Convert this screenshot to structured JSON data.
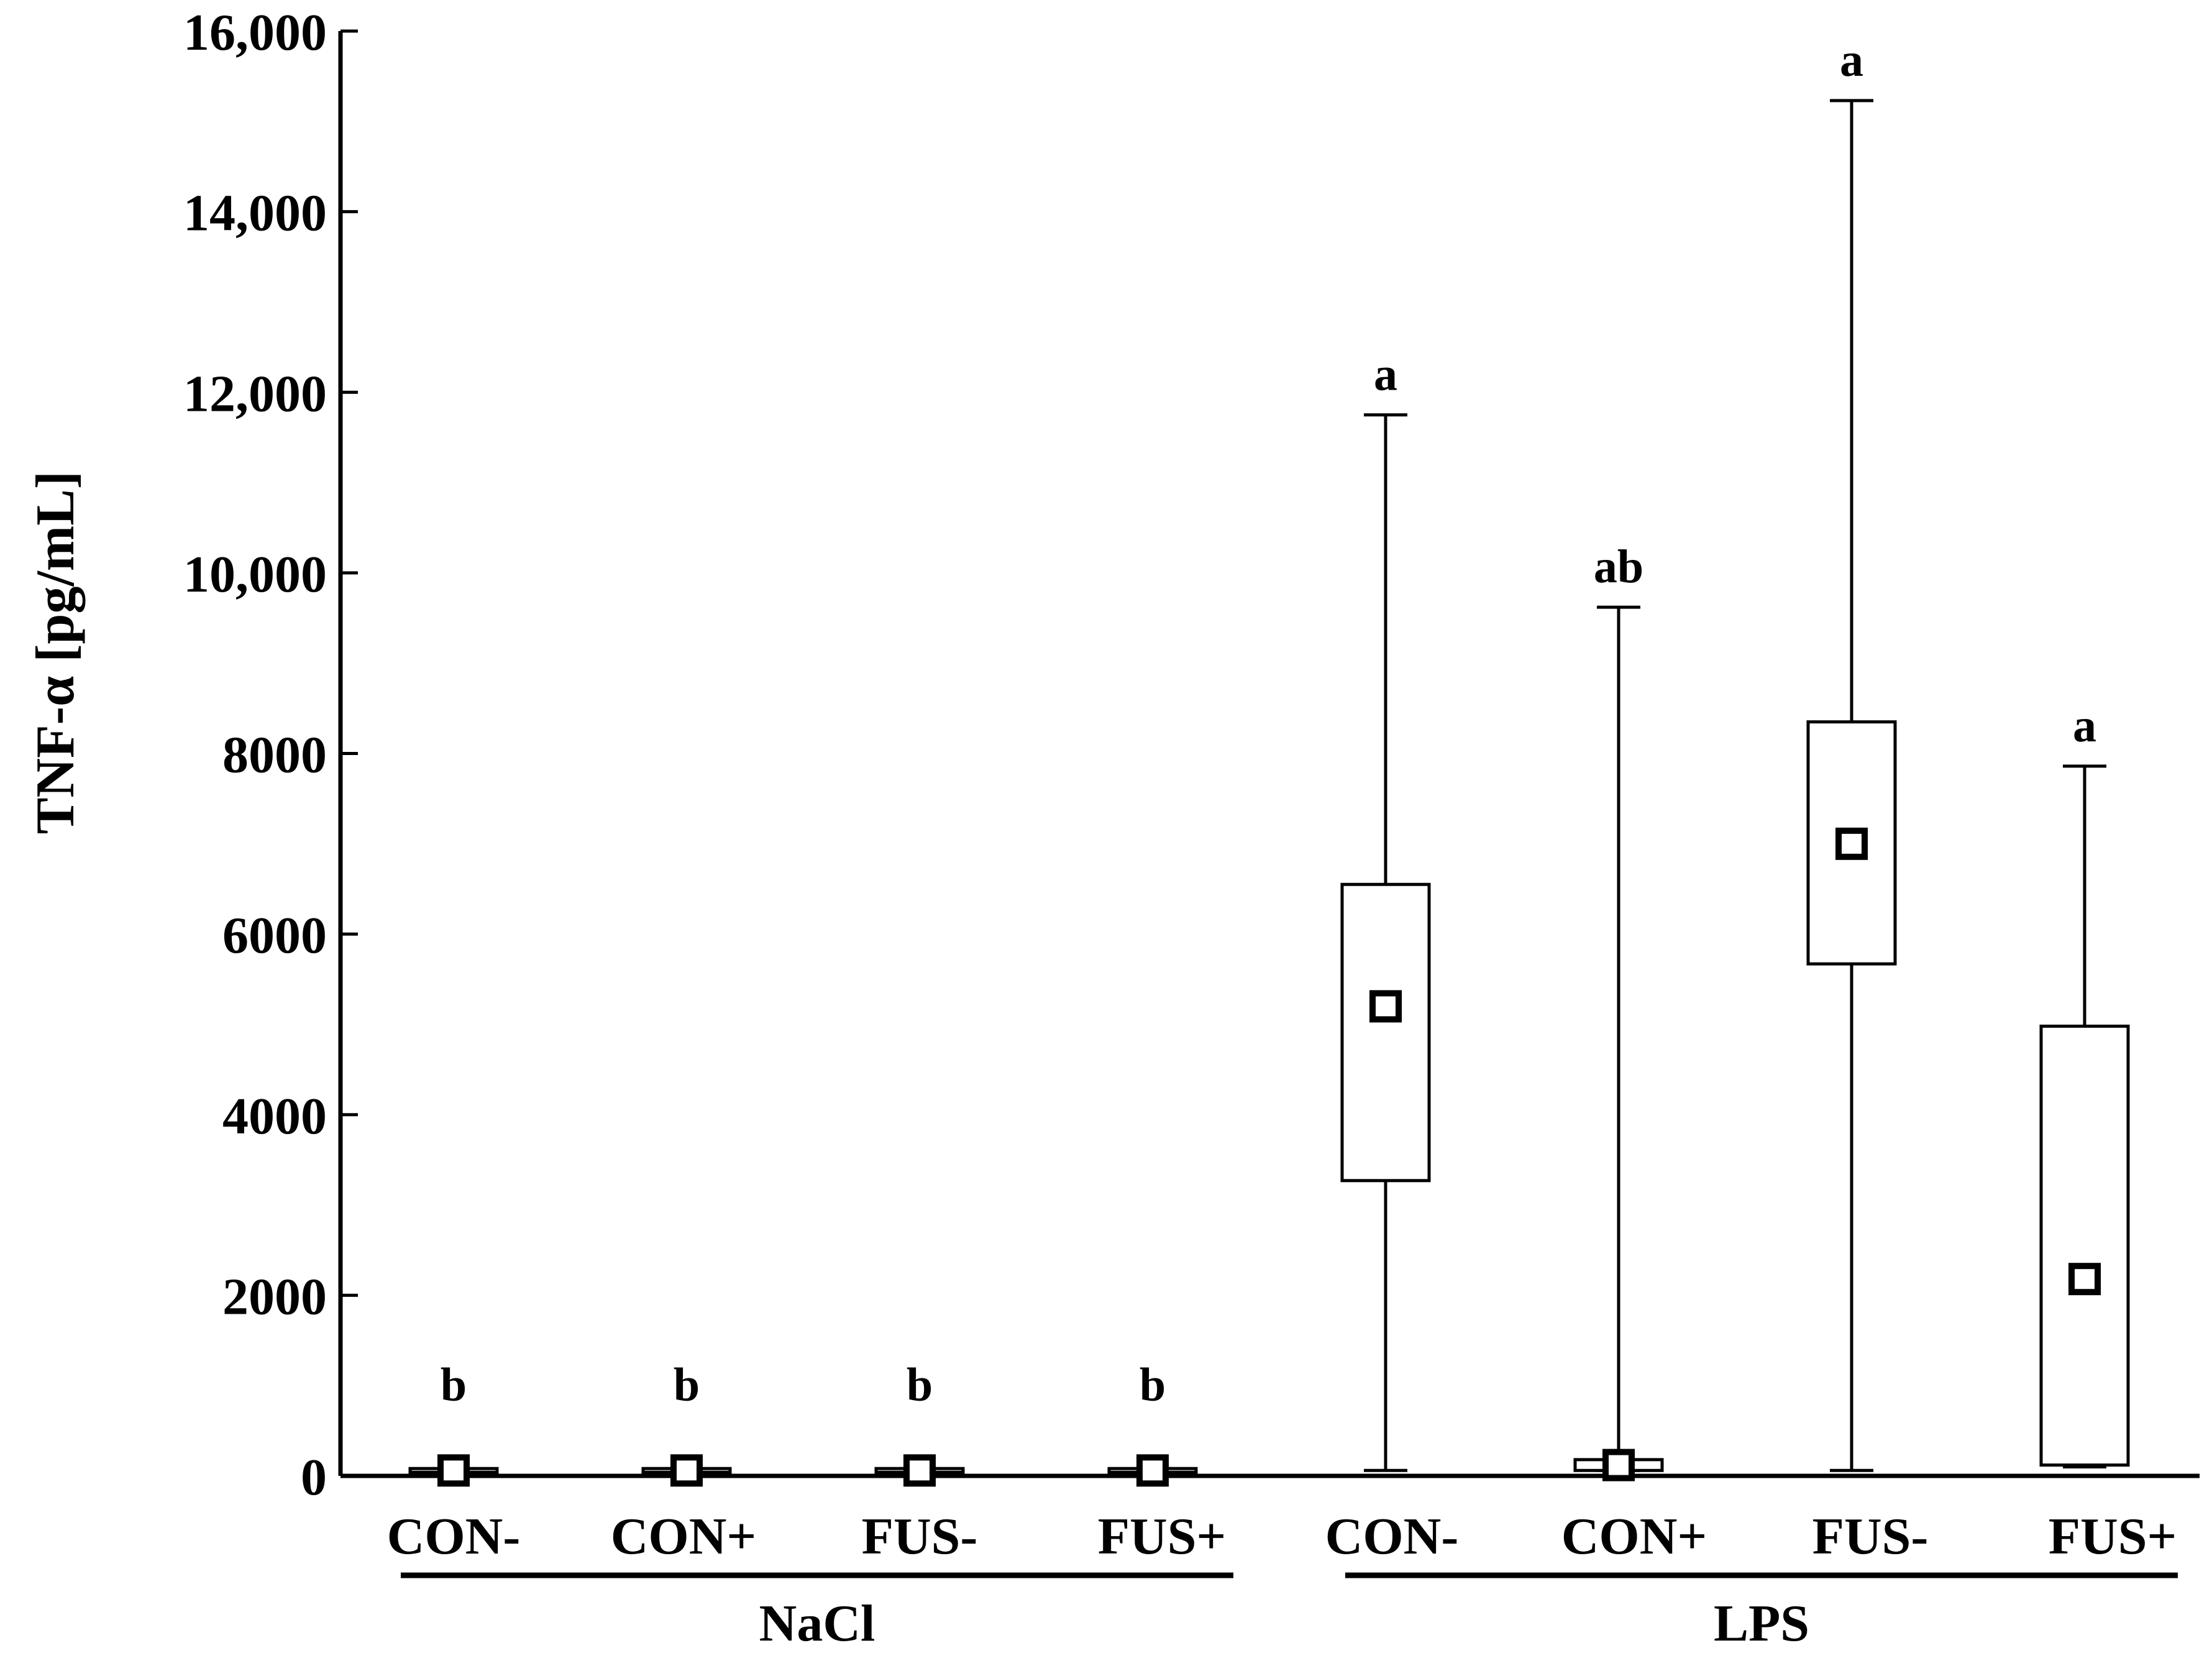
{
  "chart_data": {
    "type": "box",
    "ylabel": "TNF-α [pg/mL]",
    "ylim": [
      0,
      16000
    ],
    "yticks": [
      0,
      2000,
      4000,
      6000,
      8000,
      10000,
      12000,
      14000,
      16000
    ],
    "ytick_labels": [
      "0",
      "2000",
      "4000",
      "6000",
      "8000",
      "10,000",
      "12,000",
      "14,000",
      "16,000"
    ],
    "groups": [
      {
        "name": "NaCl",
        "categories": [
          "CON-",
          "CON+",
          "FUS-",
          "FUS+"
        ]
      },
      {
        "name": "LPS",
        "categories": [
          "CON-",
          "CON+",
          "FUS-",
          "FUS+"
        ]
      }
    ],
    "boxes": [
      {
        "group": "NaCl",
        "category": "CON-",
        "min": 40,
        "q1": 40,
        "median": 60,
        "q3": 80,
        "max": 80,
        "letter": "b"
      },
      {
        "group": "NaCl",
        "category": "CON+",
        "min": 40,
        "q1": 40,
        "median": 60,
        "q3": 80,
        "max": 80,
        "letter": "b"
      },
      {
        "group": "NaCl",
        "category": "FUS-",
        "min": 40,
        "q1": 40,
        "median": 60,
        "q3": 80,
        "max": 80,
        "letter": "b"
      },
      {
        "group": "NaCl",
        "category": "FUS+",
        "min": 40,
        "q1": 40,
        "median": 60,
        "q3": 80,
        "max": 80,
        "letter": "b"
      },
      {
        "group": "LPS",
        "category": "CON-",
        "min": 60,
        "q1": 3270,
        "median": 5200,
        "q3": 6550,
        "max": 11750,
        "letter": "a"
      },
      {
        "group": "LPS",
        "category": "CON+",
        "min": 60,
        "q1": 60,
        "median": 120,
        "q3": 180,
        "max": 9620,
        "letter": "ab"
      },
      {
        "group": "LPS",
        "category": "FUS-",
        "min": 60,
        "q1": 5670,
        "median": 7000,
        "q3": 8350,
        "max": 15230,
        "letter": "a"
      },
      {
        "group": "LPS",
        "category": "FUS+",
        "min": 100,
        "q1": 120,
        "median": 2180,
        "q3": 4980,
        "max": 7860,
        "letter": "a"
      }
    ]
  }
}
